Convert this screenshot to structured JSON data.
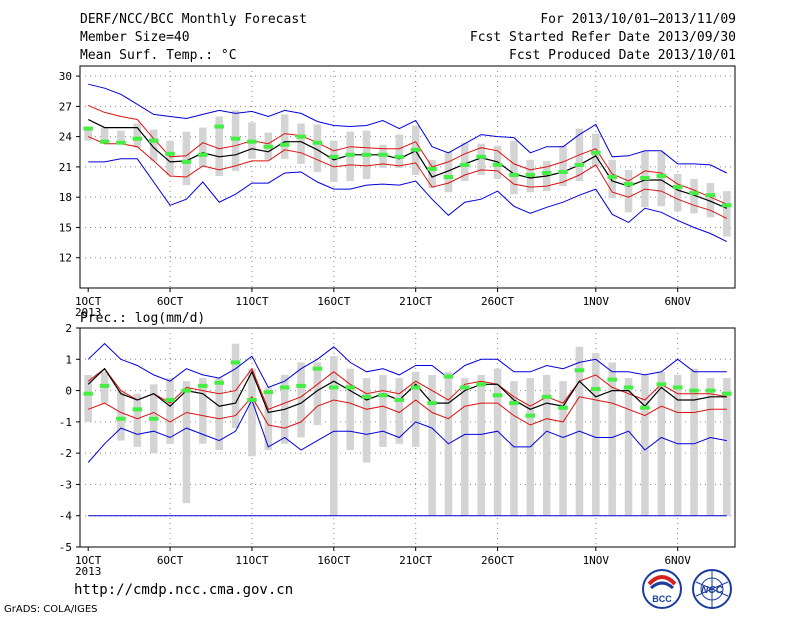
{
  "header": {
    "title": "DERF/NCC/BCC Monthly Forecast",
    "member_size": "Member Size=40",
    "variable": "Mean Surf. Temp.: °C",
    "period": "For 2013/10/01–2013/11/09",
    "started": "Fcst Started Refer Date 2013/09/30",
    "produced": "Fcst Produced Date 2013/10/01"
  },
  "footer": {
    "url": "http://cmdp.ncc.cma.gov.cn",
    "credit": "GrADS: COLA/IGES",
    "logo_left": "BCC",
    "logo_right": "NCC"
  },
  "colors": {
    "box": "#d4d4d4",
    "median": "#44ee44",
    "mean": "#000000",
    "spread": "#dd1111",
    "envelope": "#0000dd",
    "grid": "#888888"
  },
  "chart_data": [
    {
      "type": "line",
      "title": "",
      "ylabel": "Mean Surf. Temp.: °C",
      "ylim": [
        9,
        31
      ],
      "yticks": [
        12,
        15,
        18,
        21,
        24,
        27,
        30
      ],
      "x": [
        1,
        2,
        3,
        4,
        5,
        6,
        7,
        8,
        9,
        10,
        11,
        12,
        13,
        14,
        15,
        16,
        17,
        18,
        19,
        20,
        21,
        22,
        23,
        24,
        25,
        26,
        27,
        28,
        29,
        30,
        31,
        32,
        33,
        34,
        35,
        36,
        37,
        38,
        39,
        40
      ],
      "xtick_pos": [
        1,
        6,
        11,
        16,
        21,
        26,
        32,
        37
      ],
      "xtick_labels": [
        "1OCT",
        "6OCT",
        "11OCT",
        "16OCT",
        "21OCT",
        "26OCT",
        "1NOV",
        "6NOV"
      ],
      "year_label": "2013",
      "grid": true,
      "series": [
        {
          "role": "max",
          "values": [
            29.2,
            28.8,
            28.2,
            27.2,
            26.2,
            26.0,
            25.8,
            26.2,
            26.6,
            26.3,
            26.5,
            26.0,
            26.6,
            26.3,
            25.5,
            25.1,
            25.0,
            25.1,
            25.6,
            24.8,
            25.6,
            23.0,
            22.4,
            23.3,
            24.2,
            24.0,
            23.9,
            22.4,
            23.0,
            23.0,
            24.2,
            25.2,
            22.0,
            22.1,
            22.6,
            22.6,
            21.3,
            21.3,
            21.2,
            20.4
          ]
        },
        {
          "role": "p90",
          "values": [
            27.1,
            26.4,
            26.0,
            25.7,
            23.8,
            22.0,
            22.1,
            23.4,
            22.8,
            23.1,
            23.6,
            23.3,
            24.3,
            24.1,
            23.4,
            22.6,
            23.0,
            22.9,
            22.8,
            22.8,
            23.5,
            21.0,
            21.5,
            22.3,
            22.9,
            22.6,
            21.3,
            20.7,
            21.0,
            21.5,
            22.2,
            22.8,
            20.3,
            19.6,
            20.6,
            20.4,
            19.3,
            18.7,
            18.0,
            17.3
          ]
        },
        {
          "role": "mean",
          "values": [
            25.7,
            24.9,
            24.9,
            24.9,
            22.9,
            21.5,
            21.6,
            22.4,
            22.0,
            22.2,
            22.8,
            22.5,
            23.5,
            23.5,
            22.7,
            21.7,
            22.2,
            22.2,
            22.2,
            21.8,
            22.6,
            20.0,
            20.6,
            21.3,
            21.9,
            21.5,
            20.3,
            19.9,
            20.1,
            20.5,
            21.2,
            22.1,
            19.6,
            19.1,
            19.7,
            19.7,
            18.7,
            18.2,
            17.6,
            16.9
          ]
        },
        {
          "role": "p10",
          "values": [
            24.0,
            23.3,
            23.3,
            23.0,
            21.6,
            20.1,
            20.0,
            21.1,
            20.7,
            21.1,
            21.6,
            21.6,
            22.7,
            22.4,
            21.7,
            21.0,
            21.2,
            21.1,
            21.3,
            21.1,
            21.4,
            19.0,
            19.4,
            20.2,
            20.7,
            20.6,
            19.3,
            19.0,
            19.1,
            19.5,
            20.2,
            21.2,
            18.5,
            18.0,
            18.8,
            18.6,
            17.8,
            17.2,
            16.7,
            15.9
          ]
        },
        {
          "role": "min",
          "values": [
            21.5,
            21.5,
            21.8,
            21.8,
            19.5,
            17.2,
            17.8,
            19.5,
            17.5,
            18.3,
            19.4,
            19.4,
            20.4,
            20.5,
            19.5,
            18.8,
            18.8,
            19.2,
            19.3,
            19.2,
            19.6,
            17.8,
            16.2,
            17.5,
            17.8,
            18.6,
            17.1,
            16.4,
            17.0,
            17.5,
            18.2,
            18.8,
            16.3,
            15.5,
            16.9,
            16.5,
            15.7,
            15.0,
            14.4,
            13.6
          ]
        },
        {
          "role": "median",
          "values": [
            24.8,
            23.5,
            23.4,
            23.8,
            23.6,
            22.3,
            21.5,
            22.2,
            25.0,
            23.8,
            23.5,
            23.0,
            23.2,
            24.0,
            23.4,
            22.0,
            22.2,
            22.2,
            22.2,
            22.0,
            22.7,
            20.8,
            20.0,
            21.2,
            22.0,
            21.2,
            20.2,
            20.2,
            20.4,
            20.5,
            21.2,
            22.4,
            20.0,
            19.3,
            19.9,
            20.1,
            19.0,
            18.4,
            18.2,
            17.2
          ]
        },
        {
          "role": "box_low",
          "values": [
            23.6,
            23.6,
            23.6,
            22.9,
            21.6,
            20.2,
            19.2,
            21.0,
            20.1,
            20.6,
            21.8,
            21.7,
            21.8,
            21.3,
            20.5,
            19.5,
            19.6,
            19.8,
            20.9,
            20.9,
            20.2,
            18.9,
            18.5,
            19.6,
            20.2,
            19.8,
            18.3,
            18.5,
            18.6,
            19.1,
            19.6,
            21.0,
            17.9,
            16.5,
            17.0,
            17.1,
            16.6,
            16.4,
            16.0,
            14.1
          ]
        },
        {
          "role": "box_high",
          "values": [
            25.0,
            24.9,
            24.6,
            25.3,
            24.7,
            23.6,
            24.5,
            24.9,
            26.0,
            26.6,
            25.4,
            24.4,
            26.2,
            25.3,
            25.2,
            23.6,
            24.5,
            24.6,
            23.2,
            24.2,
            25.1,
            21.7,
            22.5,
            23.4,
            23.3,
            23.1,
            23.6,
            21.7,
            21.6,
            23.1,
            24.8,
            24.3,
            21.7,
            20.7,
            22.6,
            22.5,
            20.3,
            19.8,
            19.4,
            18.6
          ]
        }
      ]
    },
    {
      "type": "line",
      "title": "Prec.: log(mm/d)",
      "ylabel": "Prec.: log(mm/d)",
      "ylim": [
        -5,
        2
      ],
      "yticks": [
        -5,
        -4,
        -3,
        -2,
        -1,
        0,
        1,
        2
      ],
      "x": [
        1,
        2,
        3,
        4,
        5,
        6,
        7,
        8,
        9,
        10,
        11,
        12,
        13,
        14,
        15,
        16,
        17,
        18,
        19,
        20,
        21,
        22,
        23,
        24,
        25,
        26,
        27,
        28,
        29,
        30,
        31,
        32,
        33,
        34,
        35,
        36,
        37,
        38,
        39,
        40
      ],
      "xtick_pos": [
        1,
        6,
        11,
        16,
        21,
        26,
        32,
        37
      ],
      "xtick_labels": [
        "1OCT",
        "6OCT",
        "11OCT",
        "16OCT",
        "21OCT",
        "26OCT",
        "1NOV",
        "6NOV"
      ],
      "year_label": "2013",
      "grid": true,
      "series": [
        {
          "role": "max",
          "values": [
            1.0,
            1.5,
            1.0,
            0.8,
            0.5,
            0.3,
            0.7,
            0.5,
            0.4,
            0.7,
            1.1,
            0.1,
            0.3,
            0.7,
            1.0,
            1.4,
            0.9,
            0.6,
            0.7,
            0.5,
            0.8,
            0.8,
            0.4,
            0.8,
            1.0,
            1.0,
            0.6,
            0.6,
            0.8,
            0.7,
            0.9,
            1.0,
            0.6,
            0.6,
            0.5,
            0.6,
            1.0,
            0.6,
            0.6,
            0.6
          ]
        },
        {
          "role": "p90",
          "values": [
            0.3,
            0.7,
            0.0,
            -0.3,
            -0.1,
            -0.4,
            0.1,
            0.0,
            -0.1,
            0.0,
            0.7,
            -0.6,
            -0.4,
            -0.2,
            0.2,
            0.6,
            0.2,
            -0.1,
            0.0,
            -0.1,
            0.3,
            0.0,
            -0.3,
            0.2,
            0.3,
            0.2,
            -0.2,
            -0.5,
            -0.2,
            -0.4,
            0.3,
            0.5,
            0.1,
            -0.1,
            -0.3,
            0.2,
            -0.1,
            -0.1,
            -0.1,
            -0.2
          ]
        },
        {
          "role": "mean",
          "values": [
            0.2,
            0.7,
            -0.1,
            -0.3,
            -0.1,
            -0.5,
            0.0,
            -0.1,
            -0.5,
            -0.4,
            0.6,
            -0.7,
            -0.6,
            -0.4,
            0.0,
            0.3,
            0.0,
            -0.3,
            -0.1,
            -0.3,
            0.2,
            -0.4,
            -0.4,
            0.0,
            0.2,
            0.2,
            -0.3,
            -0.6,
            -0.4,
            -0.5,
            0.3,
            -0.2,
            0.0,
            0.0,
            -0.5,
            0.1,
            -0.3,
            -0.3,
            -0.2,
            -0.2
          ]
        },
        {
          "role": "p10",
          "values": [
            -0.6,
            -0.4,
            -0.7,
            -0.9,
            -0.7,
            -1.0,
            -0.7,
            -0.8,
            -0.9,
            -0.8,
            -0.2,
            -1.1,
            -1.2,
            -1.0,
            -0.5,
            -0.3,
            -0.4,
            -0.6,
            -0.5,
            -0.7,
            -0.3,
            -0.7,
            -0.9,
            -0.5,
            -0.4,
            -0.4,
            -0.8,
            -1.1,
            -0.9,
            -1.0,
            -0.2,
            -0.3,
            -0.4,
            -0.6,
            -0.8,
            -0.5,
            -0.7,
            -0.7,
            -0.6,
            -0.6
          ]
        },
        {
          "role": "min",
          "values": [
            -2.3,
            -1.7,
            -1.2,
            -1.4,
            -1.3,
            -1.5,
            -1.2,
            -1.4,
            -1.6,
            -1.3,
            -0.3,
            -1.8,
            -1.5,
            -1.9,
            -1.6,
            -1.3,
            -1.3,
            -1.4,
            -1.3,
            -1.5,
            -1.0,
            -1.2,
            -1.7,
            -1.4,
            -1.4,
            -1.3,
            -1.8,
            -1.8,
            -1.3,
            -1.5,
            -1.3,
            -1.5,
            -1.5,
            -1.3,
            -1.9,
            -1.5,
            -1.7,
            -1.7,
            -1.5,
            -1.6
          ]
        },
        {
          "role": "median",
          "values": [
            -0.1,
            0.15,
            -0.9,
            -0.6,
            -0.9,
            -0.3,
            0.0,
            0.15,
            0.25,
            0.9,
            -0.3,
            -0.05,
            0.1,
            0.15,
            0.7,
            0.1,
            0.1,
            -0.2,
            -0.15,
            -0.3,
            0.1,
            -0.4,
            0.45,
            0.1,
            0.2,
            -0.15,
            -0.4,
            -0.8,
            -0.2,
            -0.55,
            0.65,
            0.05,
            0.35,
            0.1,
            -0.55,
            0.2,
            0.1,
            0.0,
            0.0,
            -0.1
          ]
        },
        {
          "role": "box_low",
          "values": [
            -1.0,
            -0.4,
            -1.6,
            -1.8,
            -2.0,
            -1.7,
            -3.6,
            -1.7,
            -1.9,
            -1.2,
            -2.1,
            -1.9,
            -1.7,
            -1.5,
            -1.1,
            -4.0,
            -1.9,
            -2.3,
            -1.8,
            -1.7,
            -1.8,
            -4.0,
            -4.0,
            -4.0,
            -4.0,
            -4.0,
            -4.0,
            -4.0,
            -4.0,
            -4.0,
            -4.0,
            -4.0,
            -4.0,
            -4.0,
            -4.0,
            -4.0,
            -4.0,
            -4.0,
            -4.0,
            -4.0
          ]
        },
        {
          "role": "box_high",
          "values": [
            0.5,
            0.6,
            0.0,
            -0.1,
            0.2,
            0.4,
            0.3,
            0.4,
            0.4,
            1.5,
            0.7,
            0.1,
            0.5,
            0.9,
            0.9,
            1.1,
            0.7,
            0.4,
            0.5,
            0.4,
            0.6,
            0.5,
            0.6,
            0.4,
            0.5,
            0.7,
            0.3,
            0.4,
            0.5,
            0.3,
            1.4,
            1.2,
            0.9,
            0.4,
            0.5,
            0.6,
            0.5,
            0.7,
            0.4,
            0.4
          ]
        }
      ],
      "floor_line": -4
    }
  ]
}
